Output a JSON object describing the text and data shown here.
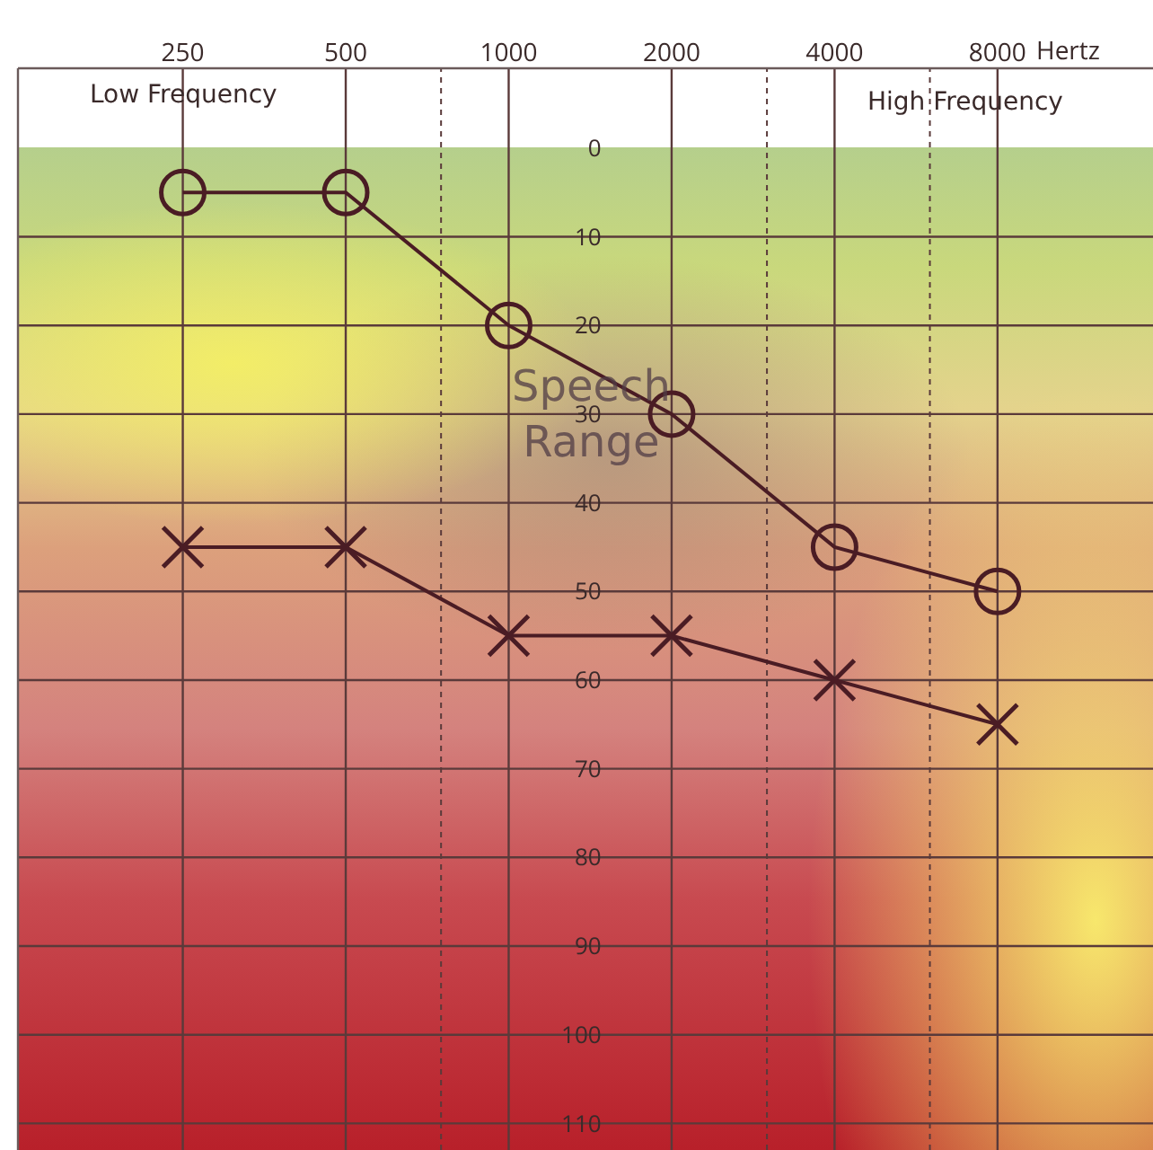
{
  "chart_data": {
    "type": "line",
    "xlabel": "Hertz",
    "x": [
      250,
      500,
      1000,
      2000,
      4000,
      8000
    ],
    "series": [
      {
        "color": "#4a1c24",
        "marker": "circle",
        "values": [
          5,
          5,
          20,
          30,
          45,
          50
        ]
      },
      {
        "color": "#4a1c24",
        "marker": "cross",
        "values": [
          45,
          45,
          55,
          55,
          60,
          65
        ]
      }
    ],
    "xlim": [
      124,
      15500
    ],
    "xticks": [
      250,
      500,
      {
        "value": 750,
        "label": null
      },
      1000,
      2000,
      {
        "value": 3000,
        "label": null
      },
      4000,
      {
        "value": 6000,
        "label": null
      },
      8000
    ],
    "ylim": [
      113,
      -9
    ],
    "yticks": [
      0,
      10,
      20,
      30,
      40,
      50,
      60,
      70,
      80,
      90,
      100,
      110
    ],
    "log": "x",
    "grid": true,
    "line_style": "solid",
    "annotations": [
      "Low Frequency",
      "High Frequency",
      "Speech\nRange"
    ]
  }
}
